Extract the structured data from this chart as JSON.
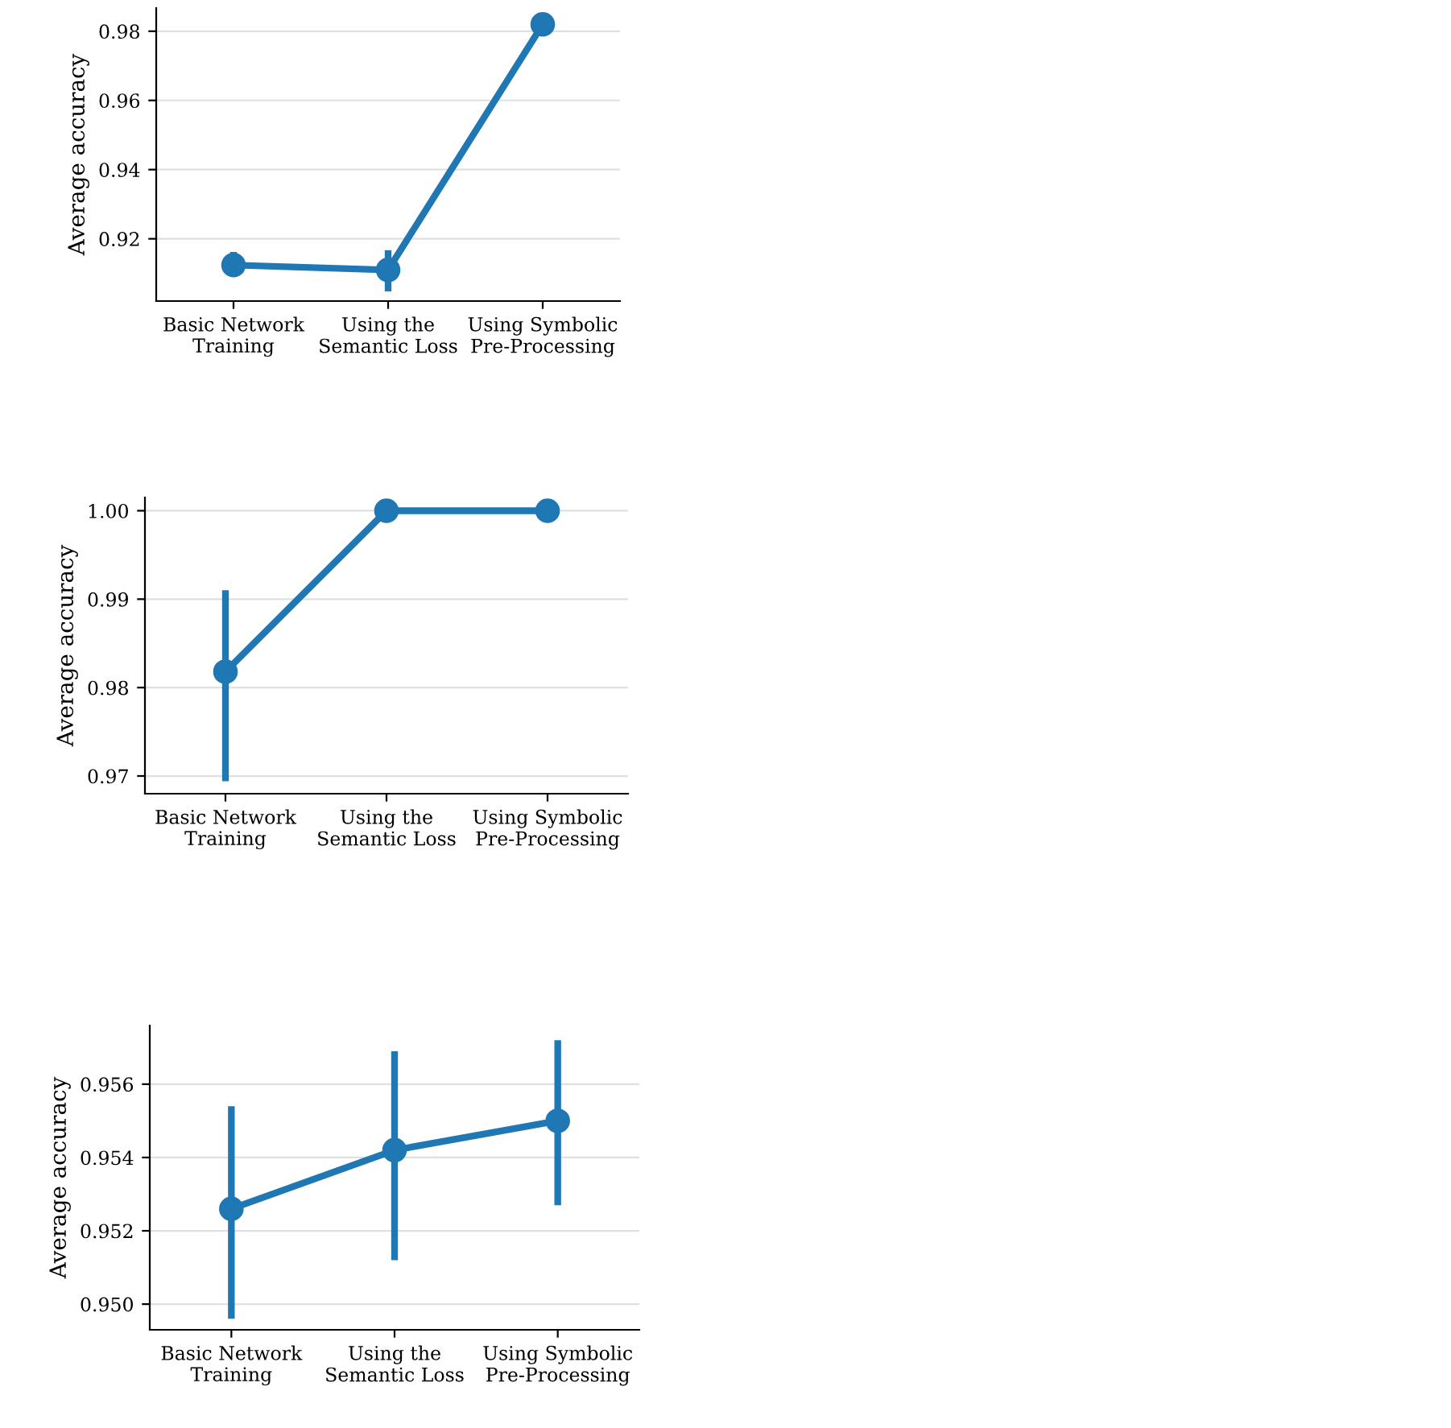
{
  "chart_data": [
    {
      "type": "line",
      "ylabel": "Average accuracy",
      "categories": [
        "Basic Network\nTraining",
        "Using the\nSemantic Loss",
        "Using Symbolic\nPre-Processing"
      ],
      "series": [
        {
          "color": "#1f77b4",
          "values": [
            0.9124,
            0.911,
            0.982
          ],
          "errors": [
            [
              0.909,
              0.9162
            ],
            [
              0.9048,
              0.9167
            ],
            null
          ]
        }
      ],
      "ylim": [
        0.902,
        0.9867
      ],
      "yticks": [
        0.92,
        0.94,
        0.96,
        0.98
      ],
      "grid": "y",
      "marker": "circle",
      "line_style": "solid"
    },
    {
      "type": "line",
      "ylabel": "Average accuracy",
      "categories": [
        "Basic Network\nTraining",
        "Using the\nSemantic Loss",
        "Using Symbolic\nPre-Processing"
      ],
      "series": [
        {
          "color": "#1f77b4",
          "values": [
            0.9818,
            1.0,
            1.0
          ],
          "errors": [
            [
              0.9694,
              0.991
            ],
            null,
            null
          ]
        }
      ],
      "ylim": [
        0.968,
        1.0015
      ],
      "yticks": [
        0.97,
        0.98,
        0.99,
        {
          "value": 1.0,
          "label": "1.00"
        }
      ],
      "grid": "y",
      "marker": "circle",
      "line_style": "solid"
    },
    {
      "type": "line",
      "ylabel": "Average accuracy",
      "categories": [
        "Basic Network\nTraining",
        "Using the\nSemantic Loss",
        "Using Symbolic\nPre-Processing"
      ],
      "series": [
        {
          "color": "#1f77b4",
          "values": [
            0.9526,
            0.9542,
            0.955
          ],
          "errors": [
            [
              0.9496,
              0.9554
            ],
            [
              0.9512,
              0.9569
            ],
            [
              0.9527,
              0.9572
            ]
          ]
        }
      ],
      "ylim": [
        0.9493,
        0.9576
      ],
      "yticks": [
        {
          "value": 0.95,
          "label": "0.950"
        },
        0.952,
        0.954,
        0.956
      ],
      "grid": "y",
      "marker": "circle",
      "line_style": "solid"
    }
  ]
}
